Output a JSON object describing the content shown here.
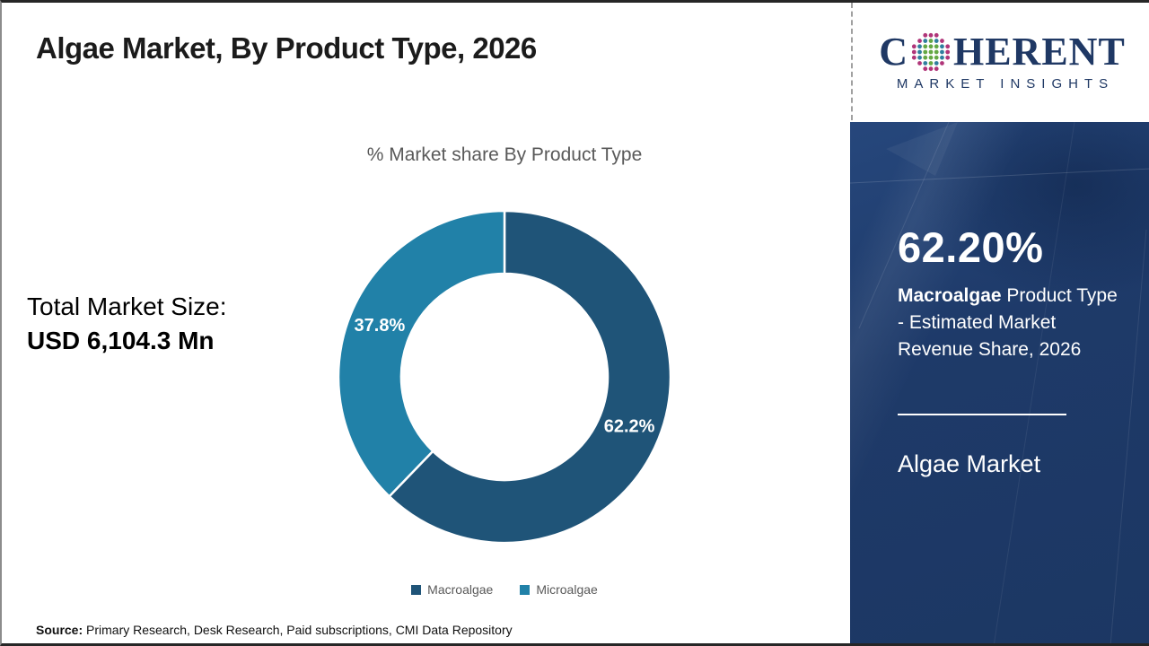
{
  "header": {
    "title": "Algae Market, By Product Type, 2026"
  },
  "logo": {
    "name": "Coherent Market Insights",
    "part1": "C",
    "part2": "HERENT",
    "subtitle": "MARKET INSIGHTS",
    "brand_color": "#1f3864",
    "dot_colors": {
      "outer": "#b03579",
      "middle": "#2f7e9e",
      "inner": "#64a844"
    }
  },
  "left_panel": {
    "total_label": "Total Market Size:",
    "total_value": "USD 6,104.3 Mn"
  },
  "chart_data": {
    "type": "pie",
    "subtype": "donut",
    "title": "% Market share By Product Type",
    "categories": [
      "Macroalgae",
      "Microalgae"
    ],
    "values": [
      62.2,
      37.8
    ],
    "slice_labels": [
      "62.2%",
      "37.8%"
    ],
    "colors": [
      "#1f5478",
      "#2181a8"
    ],
    "start_angle_deg": 0,
    "direction": "clockwise",
    "inner_radius_ratio": 0.62,
    "legend_position": "bottom",
    "label_color": "#ffffff"
  },
  "sidebar": {
    "stat_value": "62.20%",
    "stat_desc_bold": "Macroalgae",
    "stat_desc_rest": " Product Type - Estimated Market Revenue Share, 2026",
    "panel_title": "Algae Market",
    "background_color": "#1e3a69"
  },
  "footer": {
    "source_label": "Source:",
    "source_text": " Primary Research, Desk Research, Paid subscriptions, CMI Data Repository"
  }
}
